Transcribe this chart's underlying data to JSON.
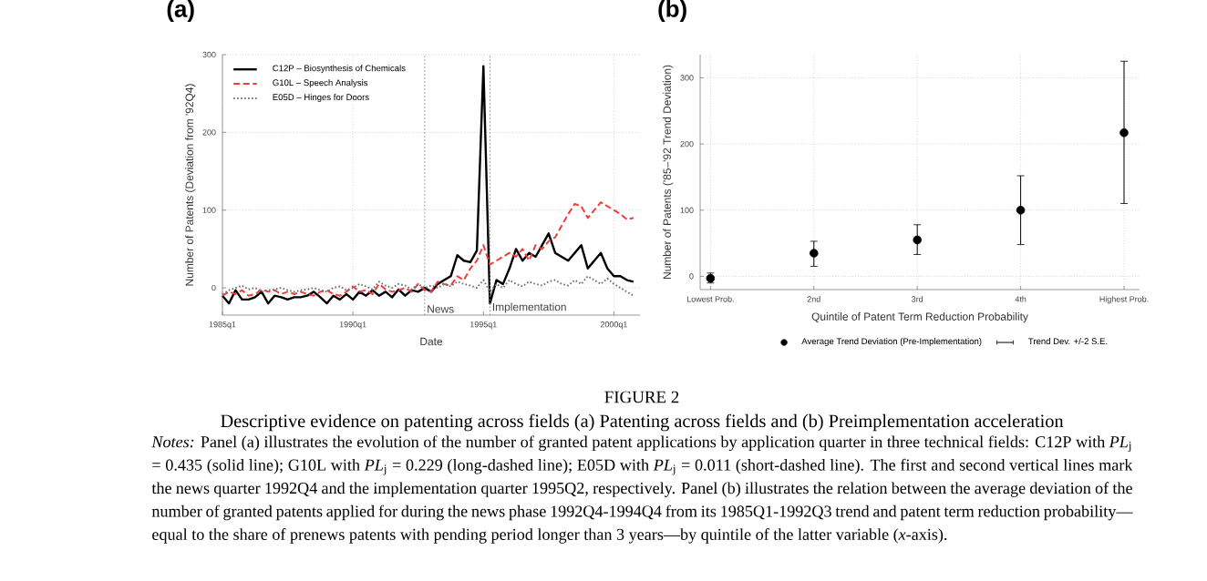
{
  "chart_data": [
    {
      "type": "line",
      "title": "(a)",
      "xlabel": "Date",
      "ylabel": "Number of Patents (Deviation from '92Q4)",
      "x": [
        "1985-01",
        "1985-04",
        "1985-07",
        "1985-10",
        "1986-01",
        "1986-04",
        "1986-07",
        "1986-10",
        "1987-01",
        "1987-04",
        "1987-07",
        "1987-10",
        "1988-01",
        "1988-04",
        "1988-07",
        "1988-10",
        "1989-01",
        "1989-04",
        "1989-07",
        "1989-10",
        "1990-01",
        "1990-04",
        "1990-07",
        "1990-10",
        "1991-01",
        "1991-04",
        "1991-07",
        "1991-10",
        "1992-01",
        "1992-04",
        "1992-07",
        "1992-10",
        "1993-01",
        "1993-04",
        "1993-07",
        "1993-10",
        "1994-01",
        "1994-04",
        "1994-07",
        "1994-10",
        "1995-01",
        "1995-04",
        "1995-07",
        "1995-10",
        "1996-01",
        "1996-04",
        "1996-07",
        "1996-10",
        "1997-01",
        "1997-04",
        "1997-07",
        "1997-10",
        "1998-01",
        "1998-04",
        "1998-07",
        "1998-10",
        "1999-01",
        "1999-04",
        "1999-07",
        "1999-10",
        "2000-01",
        "2000-04",
        "2000-07",
        "2000-10"
      ],
      "series": [
        {
          "name": "C12P – Biosynthesis of Chemicals",
          "color": "#000000",
          "line_style": "solid",
          "values": [
            -10,
            -20,
            -3,
            -15,
            -15,
            -12,
            -5,
            -20,
            -10,
            -12,
            -15,
            -12,
            -12,
            -10,
            -5,
            -12,
            -20,
            -10,
            -15,
            -8,
            -15,
            -5,
            -10,
            -3,
            -10,
            -5,
            -12,
            -2,
            -10,
            -3,
            -5,
            0,
            -5,
            5,
            10,
            15,
            42,
            35,
            33,
            48,
            285,
            -20,
            10,
            5,
            25,
            50,
            35,
            45,
            40,
            55,
            70,
            45,
            40,
            35,
            45,
            55,
            25,
            35,
            45,
            25,
            15,
            15,
            10,
            8
          ]
        },
        {
          "name": "G10L – Speech Analysis",
          "color": "#f03c3c",
          "line_style": "dashed",
          "values": [
            -10,
            -5,
            -8,
            -3,
            -10,
            -8,
            -2,
            -5,
            -3,
            -8,
            -5,
            -8,
            -5,
            -8,
            -10,
            -5,
            -3,
            -8,
            -10,
            -5,
            2,
            -5,
            -3,
            -8,
            5,
            -2,
            -5,
            -3,
            0,
            -5,
            5,
            -3,
            -5,
            8,
            5,
            3,
            15,
            10,
            25,
            35,
            55,
            30,
            35,
            40,
            45,
            40,
            50,
            35,
            55,
            50,
            60,
            65,
            80,
            95,
            108,
            105,
            90,
            100,
            110,
            105,
            100,
            95,
            88,
            90
          ]
        },
        {
          "name": "E05D – Hinges for Doors",
          "color": "#707070",
          "line_style": "dotted",
          "values": [
            -8,
            -3,
            0,
            3,
            -2,
            0,
            -5,
            -3,
            -2,
            0,
            -3,
            -5,
            -3,
            -2,
            0,
            -3,
            -5,
            0,
            2,
            -3,
            0,
            5,
            2,
            -2,
            8,
            3,
            0,
            5,
            3,
            -2,
            5,
            0,
            3,
            0,
            5,
            2,
            8,
            5,
            3,
            0,
            10,
            -5,
            5,
            0,
            10,
            5,
            2,
            8,
            5,
            3,
            8,
            10,
            5,
            3,
            10,
            5,
            15,
            10,
            5,
            12,
            5,
            0,
            -5,
            -10
          ]
        }
      ],
      "xlim": [
        "1985-01",
        "2001-01"
      ],
      "ylim": [
        -35,
        300
      ],
      "xticks": [
        {
          "value": "1985-01",
          "label": "1985q1"
        },
        {
          "value": "1990-01",
          "label": "1990q1"
        },
        {
          "value": "1995-01",
          "label": "1995q1"
        },
        {
          "value": "2000-01",
          "label": "2000q1"
        }
      ],
      "yticks": [
        0,
        100,
        200,
        300
      ],
      "grid": true,
      "legend": "top left",
      "ref_lines": [
        {
          "axis": "x",
          "value": "1992-10",
          "label": "News",
          "line_style": "dotted"
        },
        {
          "axis": "x",
          "value": "1995-04",
          "label": "Implementation",
          "line_style": "dotted"
        }
      ],
      "annotations": [
        "FIGURE 2",
        "Descriptive evidence on patenting across fields (a) Patenting across fields and (b) Preimplementation acceleration",
        "*Notes:* Panel (a) illustrates the evolution of the number of granted patent applications by application quarter in three technical fields: C12P with *PL*$_{j}$ = 0.435 (solid line); G10L with *PL*$_{j}$ = 0.229 (long-dashed line); E05D with *PL*$_{j}$ = 0.011 (short-dashed line). The first and second vertical lines mark the news quarter 1992Q4 and the implementation quarter 1995Q2, respectively. Panel (b) illustrates the relation between the average deviation of the number of granted patents applied for during the news phase 1992Q4-1994Q4 from its 1985Q1-1992Q3 trend and patent term reduction probability—equal to the share of prenews patents with pending period longer than 3 years—by quintile of the latter variable (*x*-axis)."
      ]
    },
    {
      "type": "scatter",
      "title": "(b)",
      "xlabel": "Quintile of Patent Term Reduction Probability",
      "ylabel": "Number of Patents ('85–'92 Trend Deviation)",
      "categories": [
        "Lowest Prob.",
        "2nd",
        "3rd",
        "4th",
        "Highest Prob."
      ],
      "series": [
        {
          "name": "Average Trend Deviation (Pre-Implementation)",
          "color": "#000000",
          "values": [
            -3,
            35,
            55,
            100,
            217
          ],
          "errors": [
            [
              -10,
              5
            ],
            [
              15,
              53
            ],
            [
              33,
              78
            ],
            [
              48,
              152
            ],
            [
              110,
              325
            ]
          ]
        }
      ],
      "ylim": [
        -20,
        335
      ],
      "yticks": [
        0,
        100,
        200,
        300
      ],
      "grid": true,
      "legend": "bottom",
      "marker": "circle",
      "annotations": [
        "Trend Dev. +/-2 S.E."
      ]
    }
  ]
}
